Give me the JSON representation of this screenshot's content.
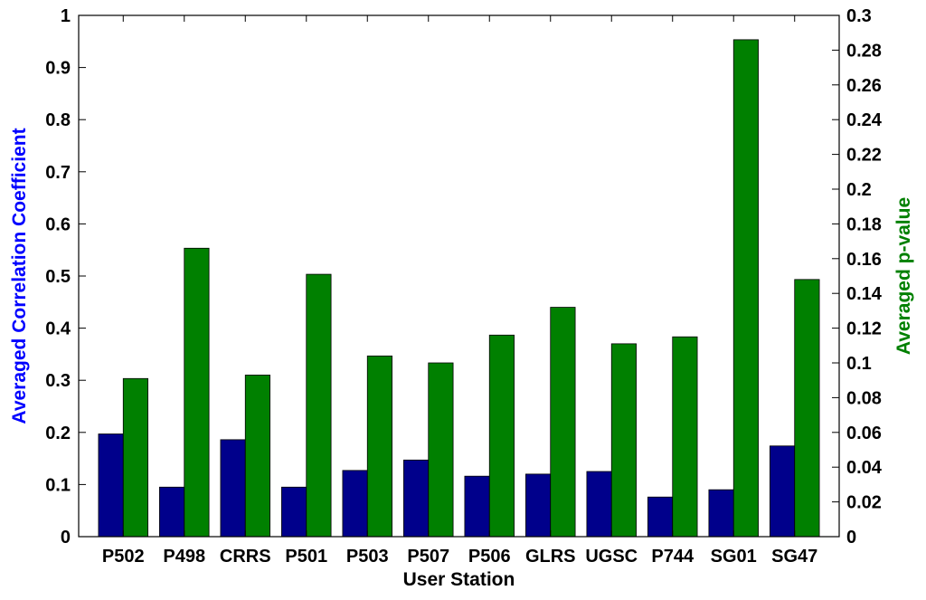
{
  "chart_data": {
    "type": "bar",
    "xlabel": "User Station",
    "ylabel_left": "Averaged Correlation Coefficient",
    "ylabel_right": "Averaged p-value",
    "categories": [
      "P502",
      "P498",
      "CRRS",
      "P501",
      "P503",
      "P507",
      "P506",
      "GLRS",
      "UGSC",
      "P744",
      "SG01",
      "SG47"
    ],
    "y_left": {
      "lim": [
        0,
        1
      ],
      "ticks": [
        "0",
        "0.1",
        "0.2",
        "0.3",
        "0.4",
        "0.5",
        "0.6",
        "0.7",
        "0.8",
        "0.9",
        "1"
      ],
      "color": "#0000ff"
    },
    "y_right": {
      "lim": [
        0,
        0.3
      ],
      "ticks": [
        "0",
        "0.02",
        "0.04",
        "0.06",
        "0.08",
        "0.1",
        "0.12",
        "0.14",
        "0.16",
        "0.18",
        "0.2",
        "0.22",
        "0.24",
        "0.26",
        "0.28",
        "0.3"
      ],
      "color": "#008000"
    },
    "series": [
      {
        "axis": "left",
        "color": "#00008b",
        "values": [
          0.197,
          0.095,
          0.186,
          0.095,
          0.127,
          0.147,
          0.116,
          0.12,
          0.125,
          0.076,
          0.09,
          0.174
        ]
      },
      {
        "axis": "right",
        "color": "#008000",
        "values": [
          0.091,
          0.166,
          0.093,
          0.151,
          0.104,
          0.1,
          0.116,
          0.132,
          0.111,
          0.115,
          0.286,
          0.148
        ]
      }
    ],
    "grid": false,
    "legend": "none"
  }
}
